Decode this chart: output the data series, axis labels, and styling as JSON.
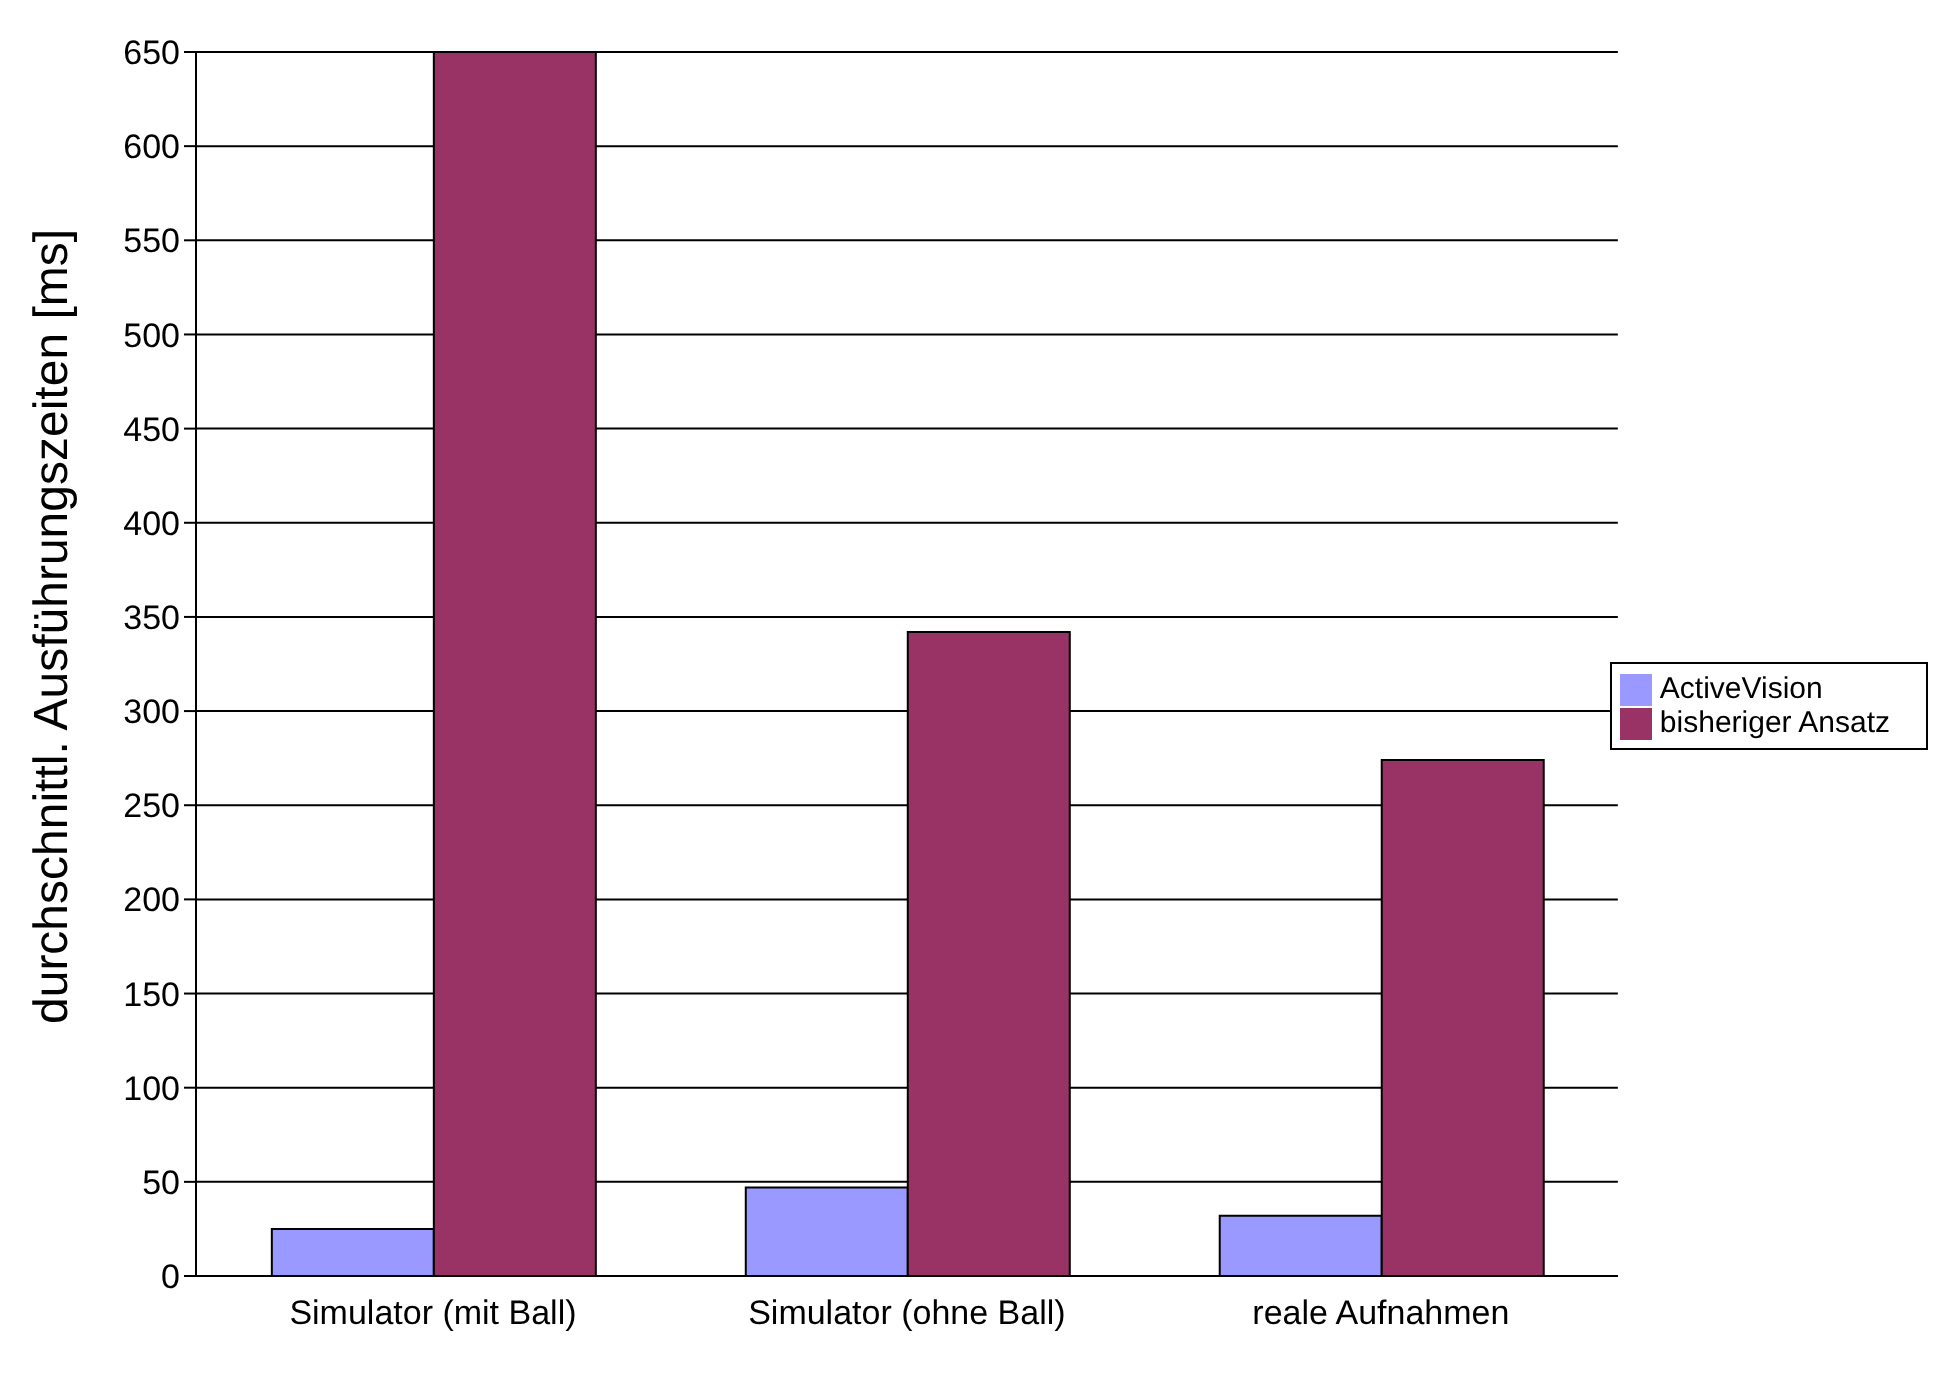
{
  "chart_data": {
    "type": "bar",
    "ylabel": "durchschnittl. Ausführungszeiten [ms]",
    "categories": [
      "Simulator (mit Ball)",
      "Simulator (ohne Ball)",
      "reale Aufnahmen"
    ],
    "series": [
      {
        "name": "ActiveVision",
        "color": "#9999ff",
        "values": [
          25,
          47,
          32
        ]
      },
      {
        "name": "bisheriger Ansatz",
        "color": "#993366",
        "values": [
          650,
          342,
          274
        ]
      }
    ],
    "ylim": [
      0,
      650
    ],
    "yticks": [
      0,
      50,
      100,
      150,
      200,
      250,
      300,
      350,
      400,
      450,
      500,
      550,
      600,
      650
    ],
    "grid": "y",
    "legend": "right"
  }
}
